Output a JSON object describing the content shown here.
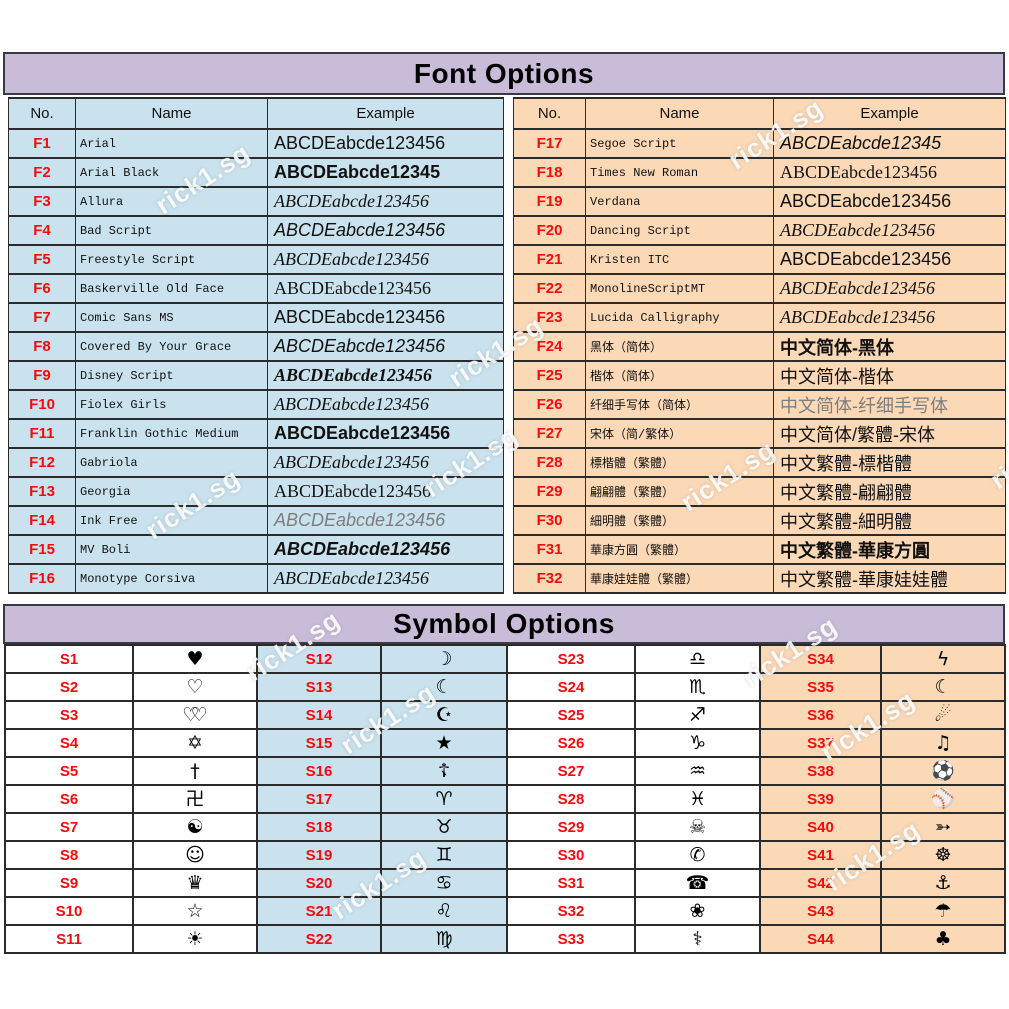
{
  "watermark_text": "rick1.sg",
  "colors": {
    "header_band": "#c9bcd8",
    "left_table_bg": "#c9e2ee",
    "right_table_bg": "#fbd9b7",
    "number_red": "#f40b0b",
    "border": "#2b2b2b",
    "background": "#ffffff"
  },
  "font_section": {
    "title": "Font Options",
    "headers": {
      "no": "No.",
      "name": "Name",
      "example": "Example"
    },
    "left_rows": [
      {
        "no": "F1",
        "name": "Arial",
        "example": "ABCDEabcde123456",
        "css": "f-sans s18"
      },
      {
        "no": "F2",
        "name": "Arial Black",
        "example": "ABCDEabcde12345",
        "css": "f-sans b s20"
      },
      {
        "no": "F3",
        "name": "Allura",
        "example": "ABCDEabcde123456",
        "css": "f-serif it s15"
      },
      {
        "no": "F4",
        "name": "Bad Script",
        "example": "ABCDEabcde123456",
        "css": "f-sans it s16"
      },
      {
        "no": "F5",
        "name": "Freestyle Script",
        "example": "ABCDEabcde123456",
        "css": "f-serif it s13"
      },
      {
        "no": "F6",
        "name": "Baskerville Old Face",
        "example": "ABCDEabcde123456",
        "css": "f-serif s18"
      },
      {
        "no": "F7",
        "name": "Comic Sans MS",
        "example": "ABCDEabcde123456",
        "css": "f-sans s18"
      },
      {
        "no": "F8",
        "name": "Covered By Your Grace",
        "example": "ABCDEabcde123456",
        "css": "f-sans it s14"
      },
      {
        "no": "F9",
        "name": "Disney Script",
        "example": "ABCDEabcde123456",
        "css": "f-serif b it s16"
      },
      {
        "no": "F10",
        "name": "Fiolex Girls",
        "example": "ABCDEabcde123456",
        "css": "f-serif it s14"
      },
      {
        "no": "F11",
        "name": "Franklin Gothic Medium",
        "example": "ABCDEabcde123456",
        "css": "f-sans b s19"
      },
      {
        "no": "F12",
        "name": "Gabriola",
        "example": "ABCDEabcde123456",
        "css": "f-serif it s14"
      },
      {
        "no": "F13",
        "name": "Georgia",
        "example": "ABCDEabcde123456",
        "css": "f-serif s19"
      },
      {
        "no": "F14",
        "name": "Ink Free",
        "example": "ABCDEabcde123456",
        "css": "f-sans it s16 gray"
      },
      {
        "no": "F15",
        "name": "MV Boli",
        "example": "ABCDEabcde123456",
        "css": "f-sans b it s17"
      },
      {
        "no": "F16",
        "name": "Monotype Corsiva",
        "example": "ABCDEabcde123456",
        "css": "f-serif it s15"
      }
    ],
    "right_rows": [
      {
        "no": "F17",
        "name": "Segoe Script",
        "example": "ABCDEabcde12345",
        "css": "f-sans it s17"
      },
      {
        "no": "F18",
        "name": "Times New Roman",
        "example": "ABCDEabcde123456",
        "css": "f-serif s18"
      },
      {
        "no": "F19",
        "name": "Verdana",
        "example": "ABCDEabcde123456",
        "css": "f-sans s19"
      },
      {
        "no": "F20",
        "name": "Dancing Script",
        "example": "ABCDEabcde123456",
        "css": "f-serif it s16"
      },
      {
        "no": "F21",
        "name": "Kristen ITC",
        "example": "ABCDEabcde123456",
        "css": "f-sans s18"
      },
      {
        "no": "F22",
        "name": "MonolineScriptMT",
        "example": "ABCDEabcde123456",
        "css": "f-serif it s14"
      },
      {
        "no": "F23",
        "name": "Lucida Calligraphy",
        "example": "ABCDEabcde123456",
        "css": "f-serif it s17"
      },
      {
        "no": "F24",
        "name": "黑体（简体）",
        "example": "中文简体-黑体",
        "css": "b s18"
      },
      {
        "no": "F25",
        "name": "楷体（简体）",
        "example": "中文简体-楷体",
        "css": "s17"
      },
      {
        "no": "F26",
        "name": "纤细手写体（简体）",
        "example": "中文简体-纤细手写体",
        "css": "gray s15"
      },
      {
        "no": "F27",
        "name": "宋体（简/繁体）",
        "example": "中文简体/繁體-宋体",
        "css": "s18"
      },
      {
        "no": "F28",
        "name": "標楷體（繁體）",
        "example": "中文繁體-標楷體",
        "css": "s16"
      },
      {
        "no": "F29",
        "name": "翩翩體（繁體）",
        "example": "中文繁體-翩翩體",
        "css": "s14"
      },
      {
        "no": "F30",
        "name": "細明體（繁體）",
        "example": "中文繁體-細明體",
        "css": "s17"
      },
      {
        "no": "F31",
        "name": "華康方圓（繁體）",
        "example": "中文繁體-華康方圓",
        "css": "b s18"
      },
      {
        "no": "F32",
        "name": "華康娃娃體（繁體）",
        "example": "中文繁體-華康娃娃體",
        "css": "s15"
      }
    ]
  },
  "symbol_section": {
    "title": "Symbol Options",
    "groups": [
      {
        "items": [
          {
            "no": "S1",
            "symbol": "♥",
            "icon": "black-heart-icon"
          },
          {
            "no": "S2",
            "symbol": "♡",
            "icon": "white-heart-icon"
          },
          {
            "no": "S3",
            "symbol": "♡♡",
            "icon": "double-hearts-icon",
            "css": "overlap"
          },
          {
            "no": "S4",
            "symbol": "✡",
            "icon": "star-of-david-icon"
          },
          {
            "no": "S5",
            "symbol": "†",
            "icon": "cross-icon"
          },
          {
            "no": "S6",
            "symbol": "卍",
            "icon": "swastika-icon"
          },
          {
            "no": "S7",
            "symbol": "☯",
            "icon": "yin-yang-icon"
          },
          {
            "no": "S8",
            "symbol": "☺",
            "icon": "smiley-icon"
          },
          {
            "no": "S9",
            "symbol": "♛",
            "icon": "crown-icon"
          },
          {
            "no": "S10",
            "symbol": "☆",
            "icon": "white-star-icon"
          },
          {
            "no": "S11",
            "symbol": "☀",
            "icon": "sun-icon"
          }
        ]
      },
      {
        "items": [
          {
            "no": "S12",
            "symbol": "☽",
            "icon": "crescent-moon-icon"
          },
          {
            "no": "S13",
            "symbol": "☾",
            "icon": "crescent-outline-icon"
          },
          {
            "no": "S14",
            "symbol": "☪",
            "icon": "star-and-crescent-icon"
          },
          {
            "no": "S15",
            "symbol": "★",
            "icon": "black-star-icon"
          },
          {
            "no": "S16",
            "symbol": "☦",
            "icon": "orthodox-cross-icon"
          },
          {
            "no": "S17",
            "symbol": "♈",
            "icon": "aries-icon"
          },
          {
            "no": "S18",
            "symbol": "♉",
            "icon": "taurus-icon"
          },
          {
            "no": "S19",
            "symbol": "♊",
            "icon": "gemini-icon"
          },
          {
            "no": "S20",
            "symbol": "♋",
            "icon": "cancer-icon"
          },
          {
            "no": "S21",
            "symbol": "♌",
            "icon": "leo-icon"
          },
          {
            "no": "S22",
            "symbol": "♍",
            "icon": "virgo-icon"
          }
        ]
      },
      {
        "items": [
          {
            "no": "S23",
            "symbol": "♎",
            "icon": "libra-icon"
          },
          {
            "no": "S24",
            "symbol": "♏",
            "icon": "scorpio-icon"
          },
          {
            "no": "S25",
            "symbol": "♐",
            "icon": "sagittarius-icon"
          },
          {
            "no": "S26",
            "symbol": "♑",
            "icon": "capricorn-icon"
          },
          {
            "no": "S27",
            "symbol": "♒",
            "icon": "aquarius-icon"
          },
          {
            "no": "S28",
            "symbol": "♓",
            "icon": "pisces-icon"
          },
          {
            "no": "S29",
            "symbol": "☠",
            "icon": "skull-crossbones-icon"
          },
          {
            "no": "S30",
            "symbol": "✆",
            "icon": "phone-receiver-icon"
          },
          {
            "no": "S31",
            "symbol": "☎",
            "icon": "telephone-icon"
          },
          {
            "no": "S32",
            "symbol": "❀",
            "icon": "flower-icon"
          },
          {
            "no": "S33",
            "symbol": "⚕",
            "icon": "asclepius-staff-icon"
          }
        ]
      },
      {
        "items": [
          {
            "no": "S34",
            "symbol": "ϟ",
            "icon": "lightning-icon"
          },
          {
            "no": "S35",
            "symbol": "☾",
            "icon": "moon-icon"
          },
          {
            "no": "S36",
            "symbol": "☄",
            "icon": "comet-icon"
          },
          {
            "no": "S37",
            "symbol": "♫",
            "icon": "music-notes-icon"
          },
          {
            "no": "S38",
            "symbol": "⚽",
            "icon": "soccer-ball-icon"
          },
          {
            "no": "S39",
            "symbol": "⚾",
            "icon": "baseball-icon"
          },
          {
            "no": "S40",
            "symbol": "➳",
            "icon": "arrow-icon"
          },
          {
            "no": "S41",
            "symbol": "☸",
            "icon": "ship-wheel-icon"
          },
          {
            "no": "S42",
            "symbol": "⚓",
            "icon": "anchor-icon"
          },
          {
            "no": "S43",
            "symbol": "☂",
            "icon": "umbrella-icon"
          },
          {
            "no": "S44",
            "symbol": "♣",
            "icon": "clover-icon"
          }
        ]
      }
    ]
  }
}
